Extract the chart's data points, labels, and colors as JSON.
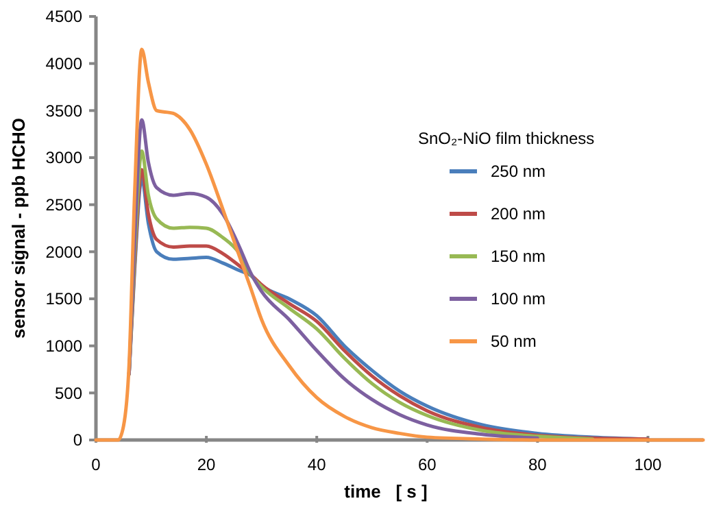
{
  "chart_data": {
    "type": "line",
    "xlabel": "time   [ s ]",
    "ylabel": "sensor signal - ppb HCHO",
    "legend_title": "SnO₂-NiO film thickness",
    "legend": "right",
    "grid": false,
    "marker": "none",
    "line_style": "solid",
    "xlim": [
      0,
      110
    ],
    "xticks": [
      0,
      20,
      40,
      60,
      80,
      100
    ],
    "ylim": [
      0,
      4500
    ],
    "yticks": [
      0,
      500,
      1000,
      1500,
      2000,
      2500,
      3000,
      3500,
      4000,
      4500
    ],
    "x": [
      0,
      4,
      5,
      6,
      7,
      8.3,
      9.5,
      11,
      14,
      17,
      20,
      23,
      26,
      28,
      30,
      35,
      40,
      45,
      50,
      55,
      60,
      70,
      80,
      90,
      100,
      110
    ],
    "series": [
      {
        "name": "250 nm",
        "color": "#4a7ebb",
        "values": [
          null,
          null,
          null,
          700,
          1800,
          2780,
          2300,
          2000,
          1920,
          1930,
          1940,
          1880,
          1800,
          1750,
          1640,
          1500,
          1320,
          1000,
          740,
          520,
          360,
          160,
          70,
          30,
          10,
          null
        ]
      },
      {
        "name": "200 nm",
        "color": "#be4b48",
        "values": [
          null,
          null,
          null,
          700,
          1850,
          2870,
          2400,
          2130,
          2050,
          2060,
          2060,
          1980,
          1850,
          1760,
          1650,
          1450,
          1260,
          950,
          680,
          470,
          310,
          130,
          50,
          20,
          10,
          null
        ]
      },
      {
        "name": "150 nm",
        "color": "#98b954",
        "values": [
          null,
          null,
          null,
          700,
          1950,
          3070,
          2600,
          2350,
          2250,
          2260,
          2250,
          2150,
          1980,
          1760,
          1630,
          1400,
          1180,
          870,
          600,
          400,
          260,
          100,
          40,
          10,
          null,
          null
        ]
      },
      {
        "name": "100 nm",
        "color": "#7d60a0",
        "values": [
          null,
          null,
          null,
          700,
          2100,
          3400,
          2950,
          2680,
          2600,
          2620,
          2580,
          2400,
          2050,
          1780,
          1580,
          1280,
          950,
          650,
          430,
          270,
          160,
          60,
          20,
          null,
          null,
          null
        ]
      },
      {
        "name": "50 nm",
        "color": "#f79646",
        "values": [
          0,
          0,
          150,
          800,
          2600,
          4150,
          3800,
          3500,
          3470,
          3300,
          2930,
          2450,
          1950,
          1620,
          1280,
          790,
          450,
          250,
          130,
          70,
          30,
          10,
          0,
          0,
          0,
          0
        ]
      }
    ]
  }
}
